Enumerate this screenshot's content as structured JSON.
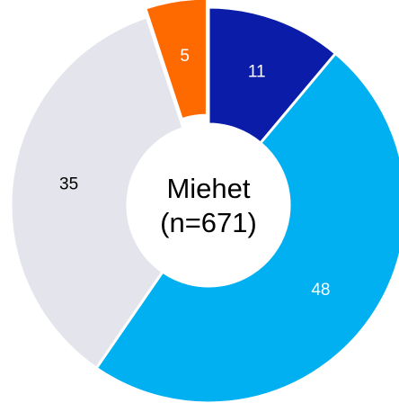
{
  "chart_data": {
    "type": "donut",
    "categories": [
      null,
      null,
      null,
      null
    ],
    "values": [
      11,
      48,
      35,
      5
    ],
    "colors": [
      "#0a1ca8",
      "#00b0f0",
      "#e4e5ec",
      "#ff6a00"
    ],
    "label_colors": [
      "#ffffff",
      "#ffffff",
      "#000000",
      "#ffffff"
    ],
    "exploded": [
      false,
      false,
      false,
      true
    ],
    "center_text": [
      "Miehet",
      "(n=671)"
    ]
  }
}
